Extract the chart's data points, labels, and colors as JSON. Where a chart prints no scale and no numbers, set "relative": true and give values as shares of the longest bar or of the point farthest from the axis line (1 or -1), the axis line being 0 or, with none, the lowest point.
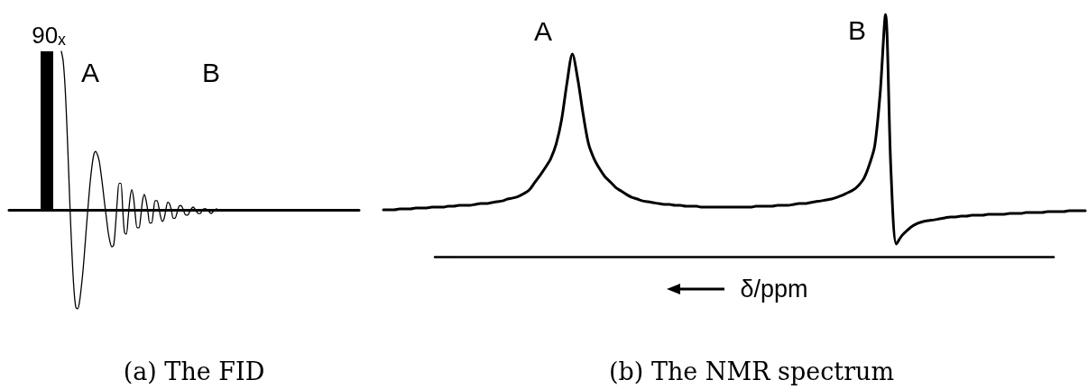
{
  "chart_data": [
    {
      "type": "line",
      "title": "(a) The FID",
      "relative": true,
      "annotations": [
        "90ₓ",
        "A",
        "B"
      ],
      "categories": [
        null,
        null,
        null,
        null,
        null,
        null,
        null,
        null,
        null,
        null,
        null,
        null,
        null,
        null,
        null,
        null,
        null,
        null,
        null,
        null,
        null,
        null,
        null,
        null,
        null,
        null,
        null,
        null,
        null,
        null,
        null,
        null,
        null,
        null,
        null,
        null,
        null,
        null,
        null,
        null,
        null,
        null,
        null,
        null,
        null,
        null,
        null,
        null,
        null,
        null,
        null,
        null,
        null,
        null,
        null,
        null,
        null,
        null,
        null,
        null,
        null,
        null,
        null,
        null,
        null,
        null,
        null,
        null,
        null,
        null,
        null,
        null,
        null,
        null,
        null,
        null,
        null,
        null,
        null,
        null,
        null,
        null,
        null,
        null,
        null,
        null,
        null,
        null,
        null,
        null,
        null,
        null,
        null,
        null,
        null,
        null,
        null,
        null,
        null,
        null,
        null,
        null,
        null,
        null,
        null,
        null,
        null,
        null,
        null,
        null,
        null,
        null,
        null,
        null,
        null,
        null,
        null,
        null,
        null,
        null,
        null,
        null,
        null,
        null,
        null,
        null,
        null,
        null,
        null,
        null,
        null,
        null,
        null,
        null,
        null,
        null,
        null,
        null,
        null,
        null,
        null,
        null,
        null,
        null,
        null,
        null,
        null,
        null,
        null,
        null,
        null,
        null,
        null,
        null,
        null,
        null,
        null,
        null,
        null,
        null,
        null,
        null,
        null,
        null,
        null,
        null,
        null,
        null,
        null,
        null,
        null,
        null,
        null,
        null,
        null,
        null,
        null,
        null,
        null,
        null,
        null,
        null,
        null,
        null,
        null,
        null,
        null,
        null,
        null,
        null,
        null,
        null,
        null,
        null,
        null
      ],
      "series": [
        {
          "color": "#000000",
          "values": [
            null,
            null,
            null,
            null,
            null,
            null,
            null,
            null,
            null,
            null,
            null,
            null,
            null,
            null,
            null,
            null,
            null,
            null,
            null,
            null,
            null,
            null,
            null,
            null,
            null,
            null,
            null,
            null,
            null,
            1,
            0.94,
            0.79,
            0.55,
            0.26,
            -0.04,
            -0.3,
            -0.5,
            -0.61,
            -0.62,
            -0.58,
            -0.49,
            -0.38,
            -0.24,
            -0.09,
            0.05,
            0.18,
            0.28,
            0.35,
            0.37,
            0.35,
            0.31,
            0.23,
            0.14,
            0.04,
            -0.05,
            -0.14,
            -0.2,
            -0.23,
            -0.22,
            -0.1,
            0.06,
            0.17,
            0.17,
            0.01,
            -0.14,
            -0.15,
            -0.05,
            0.07,
            0.13,
            0.08,
            -0.03,
            -0.11,
            -0.11,
            -0.04,
            0.06,
            0.1,
            0.06,
            -0.01,
            -0.08,
            -0.08,
            -0.01,
            0.06,
            0.06,
            0.02,
            -0.04,
            -0.07,
            -0.05,
            0.01,
            0.05,
            0.04,
            0,
            -0.05,
            -0.05,
            -0.02,
            0.02,
            0.03,
            0.02,
            -0.01,
            -0.03,
            -0.03,
            -0.01,
            0.01,
            0.02,
            0.01,
            -0.01,
            -0.02,
            -0.02,
            0,
            0.01,
            0.01,
            0,
            -0.01,
            -0.02,
            -0.01,
            0,
            0.01,
            0,
            0,
            0,
            0,
            0,
            0,
            0,
            0,
            0,
            0,
            null,
            null,
            null,
            null,
            null,
            null,
            null,
            null,
            null,
            null,
            null,
            null,
            null,
            null,
            null,
            null,
            null,
            null,
            null,
            null,
            null,
            null,
            null,
            null,
            null,
            null,
            null,
            null,
            null,
            null,
            null,
            null,
            null,
            null,
            null,
            null,
            null,
            null,
            null,
            null,
            null,
            null,
            null,
            null,
            null,
            null,
            null,
            null,
            null,
            null,
            null,
            null,
            null,
            null,
            null,
            null,
            null,
            null,
            null,
            null,
            null,
            null,
            null,
            null,
            null,
            null,
            null,
            null,
            null
          ]
        }
      ]
    },
    {
      "type": "line",
      "title": "(b) The NMR spectrum",
      "xlabel": "δ/ppm",
      "relative": true,
      "annotations": [
        "A",
        "B"
      ],
      "categories": [
        null,
        null,
        null,
        null,
        null,
        null,
        null,
        null,
        null,
        null,
        null,
        null,
        null,
        null,
        null,
        null,
        null,
        null,
        null,
        null,
        null,
        null,
        null,
        null,
        null,
        null,
        null,
        null,
        null,
        null,
        null,
        null,
        null,
        null,
        null,
        null,
        null,
        null,
        null,
        null,
        null,
        null,
        null,
        null,
        null,
        null,
        null,
        null,
        null,
        null,
        null,
        null,
        null,
        null,
        null,
        null,
        null,
        null,
        null,
        null,
        null,
        null,
        null,
        null,
        null,
        null,
        null,
        null,
        null,
        null,
        null,
        null,
        null,
        null,
        null,
        null,
        null,
        null,
        null,
        null,
        null,
        null,
        null,
        null,
        null,
        null,
        null,
        null,
        null,
        null,
        null,
        null,
        null,
        null,
        null,
        null,
        null,
        null,
        null,
        null,
        null,
        null,
        null,
        null,
        null,
        null,
        null,
        null,
        null,
        null,
        null,
        null,
        null,
        null,
        null,
        null,
        null,
        null,
        null,
        null,
        null,
        null,
        null,
        null,
        null,
        null,
        null,
        null,
        null,
        null,
        null
      ],
      "series": [
        {
          "color": "#000000",
          "values": [
            0.193,
            0.193,
            0.193,
            0.197,
            0.197,
            0.197,
            0.201,
            0.201,
            0.201,
            0.204,
            0.204,
            0.204,
            0.208,
            0.208,
            0.212,
            0.212,
            0.212,
            0.216,
            0.219,
            0.219,
            0.223,
            0.227,
            0.23,
            0.238,
            0.242,
            0.249,
            0.26,
            0.275,
            0.305,
            0.335,
            0.368,
            0.405,
            0.465,
            0.565,
            0.717,
            0.836,
            0.732,
            0.587,
            0.465,
            0.405,
            0.364,
            0.331,
            0.309,
            0.286,
            0.271,
            0.257,
            0.245,
            0.238,
            0.23,
            0.227,
            0.223,
            0.219,
            0.216,
            0.216,
            0.212,
            0.212,
            0.208,
            0.208,
            0.208,
            0.204,
            0.204,
            0.204,
            0.204,
            0.204,
            0.204,
            0.204,
            0.204,
            0.204,
            0.204,
            0.208,
            0.208,
            0.208,
            0.208,
            0.212,
            0.212,
            0.212,
            0.216,
            0.219,
            0.219,
            0.223,
            0.227,
            0.23,
            0.234,
            0.238,
            0.245,
            0.253,
            0.264,
            0.275,
            0.294,
            0.323,
            0.379,
            0.457,
            0.673,
            1,
            0.357,
            0.052,
            0.086,
            0.108,
            0.126,
            0.138,
            0.145,
            0.149,
            0.152,
            0.156,
            0.16,
            0.164,
            0.164,
            0.167,
            0.167,
            0.171,
            0.171,
            0.171,
            0.175,
            0.175,
            0.175,
            0.175,
            0.178,
            0.178,
            0.178,
            0.182,
            0.182,
            0.182,
            0.182,
            0.186,
            0.186,
            0.186,
            0.186,
            0.19,
            0.19,
            0.19,
            0.19
          ]
        }
      ]
    }
  ]
}
